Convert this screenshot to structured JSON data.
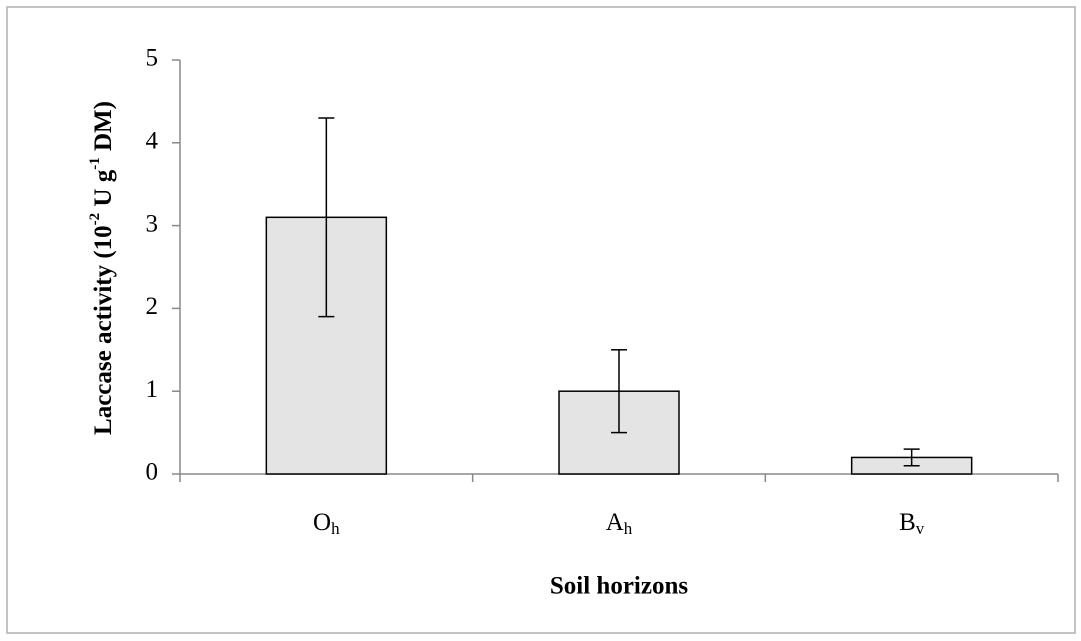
{
  "chart_data": {
    "type": "bar",
    "categories": [
      "O",
      "A",
      "B"
    ],
    "category_subscripts": [
      "h",
      "h",
      "v"
    ],
    "values": [
      3.1,
      1.0,
      0.2
    ],
    "errors": [
      1.2,
      0.5,
      0.1
    ],
    "color": "#e4e4e4",
    "xlabel": "Soil horizons",
    "ylabel": [
      "Laccase activity  (10",
      "-2",
      " U g",
      "-1",
      " DM)"
    ],
    "ylim": [
      0,
      5
    ],
    "yticks": [
      0,
      1,
      2,
      3,
      4,
      5
    ],
    "grid": false
  }
}
